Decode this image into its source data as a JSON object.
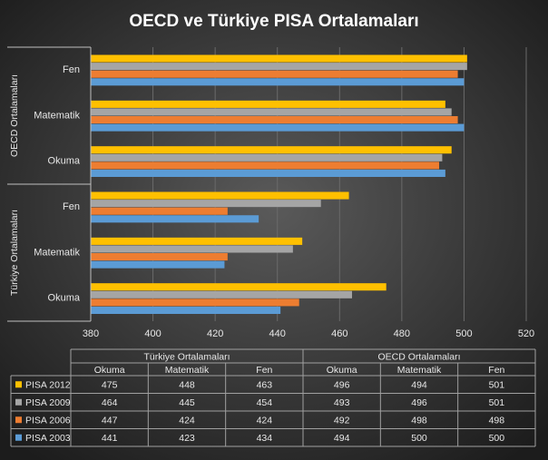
{
  "chart_data": {
    "type": "bar",
    "orientation": "horizontal",
    "title": "OECD  ve  Türkiye  PISA  Ortalamaları",
    "groups": [
      {
        "name": "Türkiye Ortalamaları",
        "categories": [
          "Okuma",
          "Matematik",
          "Fen"
        ]
      },
      {
        "name": "OECD Ortalamaları",
        "categories": [
          "Okuma",
          "Matematik",
          "Fen"
        ]
      }
    ],
    "series": [
      {
        "name": "PISA 2012",
        "color": "#ffc000",
        "values": [
          475,
          448,
          463,
          496,
          494,
          501
        ]
      },
      {
        "name": "PISA 2009",
        "color": "#a5a5a5",
        "values": [
          464,
          445,
          454,
          493,
          496,
          501
        ]
      },
      {
        "name": "PISA 2006",
        "color": "#ed7d31",
        "values": [
          447,
          424,
          424,
          492,
          498,
          498
        ]
      },
      {
        "name": "PISA 2003",
        "color": "#5b9bd5",
        "values": [
          441,
          423,
          434,
          494,
          500,
          500
        ]
      }
    ],
    "xlim": [
      380,
      520
    ],
    "xticks": [
      380,
      400,
      420,
      440,
      460,
      480,
      500,
      520
    ],
    "grid": true,
    "data_table": true
  }
}
